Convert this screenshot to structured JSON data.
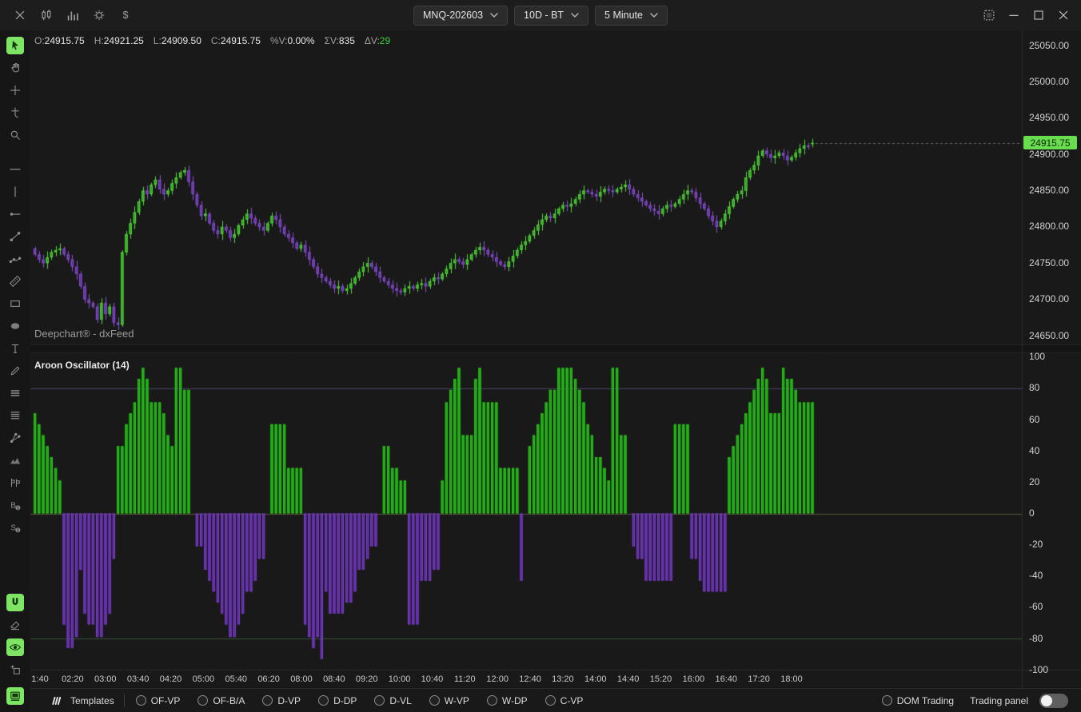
{
  "titlebar": {
    "left_icons": [
      "close-icon",
      "candlesticks-icon",
      "volume-bars-icon",
      "gear-icon",
      "dollar-icon"
    ],
    "dropdowns": [
      {
        "name": "symbol-dropdown",
        "value": "MNQ-202603"
      },
      {
        "name": "range-dropdown",
        "value": "10D - BT"
      },
      {
        "name": "timeframe-dropdown",
        "value": "5 Minute"
      }
    ],
    "window_controls": [
      "snapshot-icon",
      "minimize-icon",
      "maximize-icon",
      "window-close-icon"
    ]
  },
  "ohlc_bar": {
    "items": [
      {
        "label": "O:",
        "value": "24915.75"
      },
      {
        "label": "H:",
        "value": "24921.25"
      },
      {
        "label": "L:",
        "value": "24909.50"
      },
      {
        "label": "C:",
        "value": "24915.75"
      },
      {
        "label": "%V:",
        "value": "0.00%"
      },
      {
        "label": "ΣV:",
        "value": "835"
      },
      {
        "label": "ΔV:",
        "value": "29",
        "highlight": "green"
      }
    ]
  },
  "left_toolbar": {
    "items": [
      {
        "name": "cursor-tool",
        "active": true
      },
      {
        "name": "hand-pan-tool",
        "active": false
      },
      {
        "name": "crosshair-tool",
        "active": false
      },
      {
        "name": "anchor-point-tool",
        "active": false
      },
      {
        "name": "zoom-tool",
        "active": false
      },
      {
        "name": "horizontal-line-tool",
        "active": false
      },
      {
        "name": "vertical-line-tool",
        "active": false
      },
      {
        "name": "horizontal-ray-tool",
        "active": false
      },
      {
        "name": "trend-line-tool",
        "active": false
      },
      {
        "name": "polyline-tool",
        "active": false
      },
      {
        "name": "ruler-tool",
        "active": false
      },
      {
        "name": "rectangle-tool",
        "active": false
      },
      {
        "name": "ellipse-tool",
        "active": false
      },
      {
        "name": "text-tool",
        "active": false
      },
      {
        "name": "brush-tool",
        "active": false
      },
      {
        "name": "fib-retracement-tool",
        "active": false
      },
      {
        "name": "fib-extension-tool",
        "active": false
      },
      {
        "name": "pitchfork-tool",
        "active": false
      },
      {
        "name": "elliott-wave-tool",
        "active": false
      },
      {
        "name": "pattern-tool",
        "active": false
      },
      {
        "name": "buy-order-tool",
        "active": false
      },
      {
        "name": "sell-order-tool",
        "active": false
      },
      {
        "name": "magnet-mode",
        "active": true
      },
      {
        "name": "eraser-tool",
        "active": false
      },
      {
        "name": "visibility-toggle",
        "active": true
      },
      {
        "name": "add-panel-tool",
        "active": false
      },
      {
        "name": "panel-mode",
        "active": true
      }
    ]
  },
  "price_panel": {
    "watermark": "Deepchart® - dxFeed",
    "price_labels": [
      "25050.00",
      "25000.00",
      "24950.00",
      "24900.00",
      "24850.00",
      "24800.00",
      "24750.00",
      "24700.00",
      "24650.00"
    ],
    "current_price": "24915.75"
  },
  "aroon_panel": {
    "title": "Aroon Oscillator (14)",
    "axis_labels": [
      "100",
      "80",
      "60",
      "40",
      "20",
      "0",
      "-20",
      "-40",
      "-60",
      "-80",
      "-100"
    ]
  },
  "time_axis": {
    "labels": [
      "1:40",
      "02:20",
      "03:00",
      "03:40",
      "04:20",
      "05:00",
      "05:40",
      "06:20",
      "08:00",
      "08:40",
      "09:20",
      "10:00",
      "10:40",
      "11:20",
      "12:00",
      "12:40",
      "13:20",
      "14:00",
      "14:40",
      "15:20",
      "16:00",
      "16:40",
      "17:20",
      "18:00"
    ]
  },
  "statusbar": {
    "templates_label": "Templates",
    "template_options": [
      "OF-VP",
      "OF-B/A",
      "D-VP",
      "D-DP",
      "D-VL",
      "W-VP",
      "W-DP",
      "C-VP"
    ],
    "dom_trading_label": "DOM Trading",
    "trading_panel_label": "Trading panel",
    "trading_panel_toggle": "off"
  },
  "colors": {
    "candle_up_stroke": "#55d83c",
    "candle_up_fill": "#2f9e23",
    "candle_down_stroke": "#8a50d0",
    "candle_down_fill": "#5c2fa0",
    "aroon_up_stroke": "#2cc71d",
    "aroon_up_fill": "#1da112",
    "aroon_down_stroke": "#7a3fc7",
    "aroon_down_fill": "#5a28a0",
    "price_tag_bg": "#68dd4e",
    "grid_80": "#4a3f66",
    "grid_0": "#55553a",
    "grid_m80": "#37573a",
    "dashed_price_line": "#aaaaaa"
  },
  "chart_data": [
    {
      "type": "candlestick",
      "symbol": "MNQ-202603",
      "range": "10D - BT",
      "timeframe": "5 Minute",
      "price_axis": {
        "min": 24650,
        "max": 25050,
        "tick": 50
      },
      "first_open": 24770,
      "last_bar": {
        "open": 24915.75,
        "high": 24921.25,
        "low": 24909.5,
        "close": 24915.75
      },
      "closes": [
        24762,
        24755,
        24750,
        24758,
        24765,
        24768,
        24770,
        24762,
        24755,
        24745,
        24735,
        24718,
        24700,
        24695,
        24690,
        24672,
        24695,
        24680,
        24690,
        24668,
        24665,
        24765,
        24790,
        24805,
        24820,
        24835,
        24850,
        24845,
        24858,
        24865,
        24852,
        24845,
        24850,
        24860,
        24868,
        24875,
        24878,
        24862,
        24845,
        24830,
        24815,
        24818,
        24805,
        24795,
        24790,
        24800,
        24795,
        24785,
        24790,
        24802,
        24810,
        24818,
        24812,
        24805,
        24800,
        24795,
        24805,
        24815,
        24810,
        24800,
        24790,
        24785,
        24778,
        24770,
        24775,
        24765,
        24755,
        24745,
        24735,
        24730,
        24725,
        24720,
        24715,
        24718,
        24712,
        24715,
        24722,
        24730,
        24738,
        24745,
        24750,
        24745,
        24738,
        24730,
        24725,
        24720,
        24715,
        24712,
        24710,
        24715,
        24718,
        24715,
        24720,
        24722,
        24718,
        24725,
        24730,
        24728,
        24735,
        24742,
        24750,
        24755,
        24752,
        24748,
        24755,
        24762,
        24768,
        24772,
        24768,
        24762,
        24758,
        24752,
        24748,
        24745,
        24752,
        24760,
        24768,
        24775,
        24780,
        24788,
        24795,
        24803,
        24810,
        24815,
        24812,
        24818,
        24825,
        24830,
        24828,
        24832,
        24838,
        24845,
        24850,
        24848,
        24845,
        24842,
        24848,
        24852,
        24850,
        24848,
        24852,
        24855,
        24858,
        24852,
        24845,
        24840,
        24835,
        24830,
        24825,
        24822,
        24818,
        24825,
        24830,
        24828,
        24832,
        24838,
        24845,
        24850,
        24848,
        24840,
        24832,
        24825,
        24815,
        24808,
        24800,
        24808,
        24818,
        24828,
        24838,
        24845,
        24850,
        24868,
        24878,
        24885,
        24898,
        24905,
        24900,
        24895,
        24898,
        24902,
        24898,
        24892,
        24896,
        24902,
        24908,
        24912,
        24910,
        24915.75
      ]
    },
    {
      "type": "bar",
      "name": "Aroon Oscillator (14)",
      "period": 14,
      "ylim": [
        -100,
        100
      ],
      "gridlines": [
        80,
        0,
        -80
      ],
      "values": [
        64,
        57,
        50,
        43,
        36,
        29,
        21,
        -71,
        -86,
        -86,
        -79,
        -36,
        -64,
        -71,
        -71,
        -79,
        -79,
        -71,
        -64,
        -29,
        43,
        43,
        57,
        64,
        71,
        86,
        93,
        86,
        71,
        71,
        71,
        64,
        50,
        43,
        93,
        93,
        79,
        79,
        0,
        -21,
        -21,
        -36,
        -43,
        -50,
        -57,
        -64,
        -71,
        -79,
        -79,
        -71,
        -64,
        -50,
        -50,
        -43,
        -29,
        -29,
        0,
        57,
        57,
        57,
        57,
        29,
        29,
        29,
        29,
        -71,
        -79,
        -86,
        -79,
        -93,
        -50,
        -64,
        -64,
        -64,
        -64,
        -57,
        -57,
        -50,
        -36,
        -36,
        -29,
        -21,
        -21,
        0,
        43,
        43,
        29,
        29,
        21,
        21,
        -71,
        -71,
        -71,
        -43,
        -43,
        -43,
        -36,
        -36,
        21,
        71,
        79,
        86,
        93,
        50,
        50,
        50,
        86,
        93,
        71,
        71,
        71,
        71,
        29,
        29,
        29,
        29,
        29,
        -43,
        0,
        43,
        50,
        57,
        64,
        71,
        79,
        79,
        93,
        93,
        93,
        93,
        86,
        79,
        71,
        57,
        50,
        36,
        36,
        29,
        21,
        93,
        93,
        50,
        50,
        0,
        -21,
        -29,
        -29,
        -43,
        -43,
        -43,
        -43,
        -43,
        -43,
        -43,
        57,
        57,
        57,
        57,
        -29,
        -29,
        -43,
        -50,
        -50,
        -50,
        -50,
        -50,
        -50,
        36,
        43,
        50,
        57,
        64,
        71,
        79,
        86,
        93,
        86,
        64,
        64,
        64,
        93,
        86,
        86,
        79,
        71,
        71,
        71,
        71
      ]
    }
  ]
}
